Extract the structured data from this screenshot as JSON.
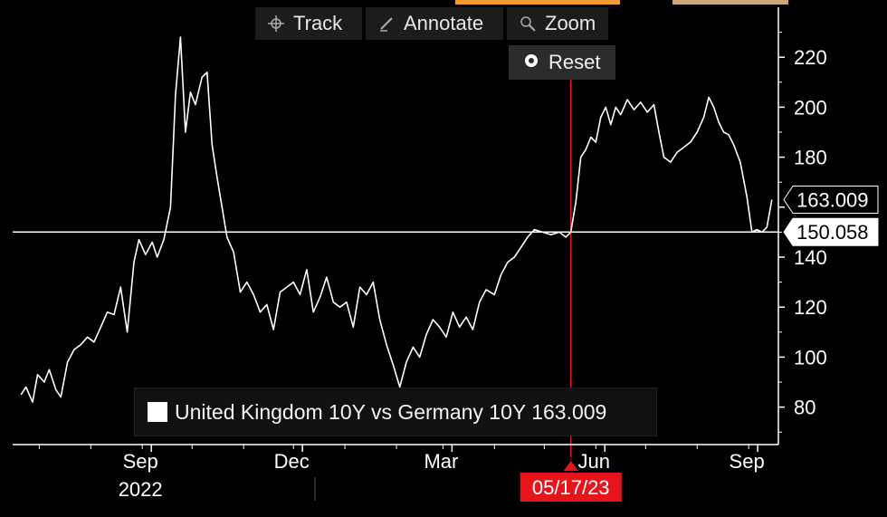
{
  "toolbar": {
    "track": "Track",
    "annotate": "Annotate",
    "zoom": "Zoom",
    "reset": "Reset"
  },
  "legend": {
    "text": "United Kingdom 10Y vs Germany 10Y 163.009"
  },
  "crosshair": {
    "date_label": "05/17/23",
    "value_label": "150.058"
  },
  "last_value_label": "163.009",
  "colors": {
    "background": "#000000",
    "line": "#ffffff",
    "crosshair": "#e8141b",
    "accent_orange": "#f39c33",
    "accent_tan": "#c9a77a"
  },
  "chart_data": {
    "type": "line",
    "series": [
      {
        "name": "United Kingdom 10Y vs Germany 10Y",
        "points": [
          [
            "2022-06-20",
            85
          ],
          [
            "2022-06-23",
            88
          ],
          [
            "2022-06-27",
            82
          ],
          [
            "2022-06-30",
            93
          ],
          [
            "2022-07-04",
            90
          ],
          [
            "2022-07-07",
            95
          ],
          [
            "2022-07-11",
            87
          ],
          [
            "2022-07-14",
            84
          ],
          [
            "2022-07-18",
            98
          ],
          [
            "2022-07-22",
            103
          ],
          [
            "2022-07-26",
            105
          ],
          [
            "2022-07-30",
            108
          ],
          [
            "2022-08-03",
            106
          ],
          [
            "2022-08-07",
            112
          ],
          [
            "2022-08-11",
            118
          ],
          [
            "2022-08-15",
            117
          ],
          [
            "2022-08-19",
            128
          ],
          [
            "2022-08-23",
            110
          ],
          [
            "2022-08-27",
            138
          ],
          [
            "2022-08-30",
            147
          ],
          [
            "2022-09-03",
            141
          ],
          [
            "2022-09-07",
            146
          ],
          [
            "2022-09-10",
            140
          ],
          [
            "2022-09-14",
            147
          ],
          [
            "2022-09-18",
            160
          ],
          [
            "2022-09-21",
            205
          ],
          [
            "2022-09-24",
            228
          ],
          [
            "2022-09-27",
            190
          ],
          [
            "2022-09-30",
            206
          ],
          [
            "2022-10-03",
            201
          ],
          [
            "2022-10-07",
            212
          ],
          [
            "2022-10-10",
            214
          ],
          [
            "2022-10-13",
            185
          ],
          [
            "2022-10-16",
            172
          ],
          [
            "2022-10-19",
            160
          ],
          [
            "2022-10-22",
            148
          ],
          [
            "2022-10-26",
            142
          ],
          [
            "2022-10-30",
            126
          ],
          [
            "2022-11-03",
            130
          ],
          [
            "2022-11-07",
            125
          ],
          [
            "2022-11-11",
            118
          ],
          [
            "2022-11-15",
            121
          ],
          [
            "2022-11-19",
            111
          ],
          [
            "2022-11-23",
            126
          ],
          [
            "2022-11-27",
            128
          ],
          [
            "2022-12-01",
            130
          ],
          [
            "2022-12-05",
            125
          ],
          [
            "2022-12-09",
            135
          ],
          [
            "2022-12-13",
            118
          ],
          [
            "2022-12-17",
            124
          ],
          [
            "2022-12-21",
            132
          ],
          [
            "2022-12-25",
            122
          ],
          [
            "2022-12-29",
            120
          ],
          [
            "2023-01-02",
            122
          ],
          [
            "2023-01-06",
            112
          ],
          [
            "2023-01-10",
            128
          ],
          [
            "2023-01-14",
            125
          ],
          [
            "2023-01-18",
            130
          ],
          [
            "2023-01-22",
            115
          ],
          [
            "2023-01-26",
            105
          ],
          [
            "2023-01-30",
            97
          ],
          [
            "2023-02-03",
            88
          ],
          [
            "2023-02-07",
            98
          ],
          [
            "2023-02-11",
            104
          ],
          [
            "2023-02-15",
            100
          ],
          [
            "2023-02-19",
            109
          ],
          [
            "2023-02-23",
            115
          ],
          [
            "2023-02-27",
            112
          ],
          [
            "2023-03-03",
            108
          ],
          [
            "2023-03-07",
            118
          ],
          [
            "2023-03-11",
            112
          ],
          [
            "2023-03-15",
            116
          ],
          [
            "2023-03-19",
            111
          ],
          [
            "2023-03-23",
            122
          ],
          [
            "2023-03-27",
            127
          ],
          [
            "2023-04-01",
            125
          ],
          [
            "2023-04-05",
            133
          ],
          [
            "2023-04-09",
            138
          ],
          [
            "2023-04-13",
            140
          ],
          [
            "2023-04-17",
            144
          ],
          [
            "2023-04-21",
            148
          ],
          [
            "2023-04-25",
            151
          ],
          [
            "2023-04-30",
            150
          ],
          [
            "2023-05-05",
            149
          ],
          [
            "2023-05-10",
            150
          ],
          [
            "2023-05-14",
            148
          ],
          [
            "2023-05-17",
            150.058
          ],
          [
            "2023-05-20",
            162
          ],
          [
            "2023-05-23",
            180
          ],
          [
            "2023-05-26",
            183
          ],
          [
            "2023-05-29",
            188
          ],
          [
            "2023-06-01",
            186
          ],
          [
            "2023-06-04",
            196
          ],
          [
            "2023-06-07",
            200
          ],
          [
            "2023-06-10",
            193
          ],
          [
            "2023-06-13",
            200
          ],
          [
            "2023-06-16",
            197
          ],
          [
            "2023-06-20",
            203
          ],
          [
            "2023-06-24",
            199
          ],
          [
            "2023-06-28",
            202
          ],
          [
            "2023-07-02",
            198
          ],
          [
            "2023-07-06",
            201
          ],
          [
            "2023-07-09",
            190
          ],
          [
            "2023-07-12",
            180
          ],
          [
            "2023-07-16",
            178
          ],
          [
            "2023-07-20",
            182
          ],
          [
            "2023-07-24",
            184
          ],
          [
            "2023-07-28",
            186
          ],
          [
            "2023-08-01",
            190
          ],
          [
            "2023-08-05",
            196
          ],
          [
            "2023-08-08",
            204
          ],
          [
            "2023-08-11",
            200
          ],
          [
            "2023-08-14",
            194
          ],
          [
            "2023-08-17",
            190
          ],
          [
            "2023-08-20",
            189
          ],
          [
            "2023-08-23",
            185
          ],
          [
            "2023-08-27",
            178
          ],
          [
            "2023-08-31",
            164
          ],
          [
            "2023-09-03",
            150
          ],
          [
            "2023-09-06",
            151
          ],
          [
            "2023-09-09",
            150
          ],
          [
            "2023-09-12",
            152
          ],
          [
            "2023-09-15",
            163.009
          ]
        ]
      }
    ],
    "x_ticks": [
      "Sep",
      "Dec",
      "Mar",
      "Jun",
      "Sep"
    ],
    "x_tick_dates": [
      "2022-09-01",
      "2022-12-01",
      "2023-03-01",
      "2023-06-01",
      "2023-09-01"
    ],
    "x_year_label": "2022",
    "y_ticks": [
      80,
      100,
      120,
      140,
      160,
      180,
      200,
      220
    ],
    "y_tick_labels_shown": [
      80,
      100,
      120,
      140,
      180,
      200,
      220
    ],
    "xlim": [
      "2022-06-15",
      "2023-09-20"
    ],
    "ylim": [
      65,
      240
    ],
    "crosshair": {
      "x": "2023-05-17",
      "y": 150.058
    },
    "last_value": 163.009,
    "grid": false,
    "legend_position": "bottom-left"
  }
}
